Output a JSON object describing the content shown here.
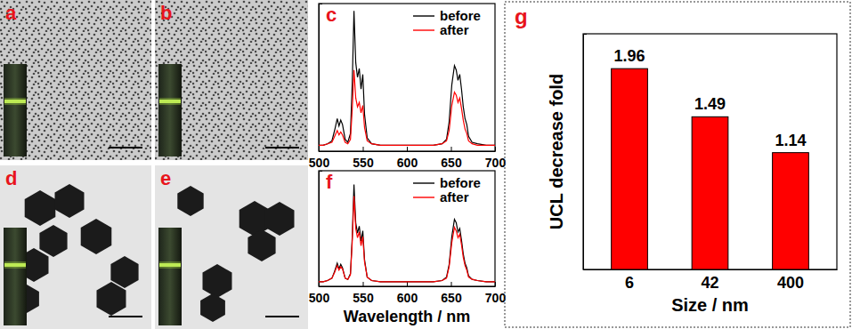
{
  "panels": [
    {
      "label": "a"
    },
    {
      "label": "b"
    },
    {
      "label": "d"
    },
    {
      "label": "e"
    }
  ],
  "chart_data": [
    {
      "type": "line",
      "title": "c",
      "x": [
        500,
        505,
        510,
        515,
        518,
        521,
        523,
        525,
        527,
        530,
        533,
        536,
        538,
        540,
        542,
        544,
        546,
        548,
        550,
        552,
        555,
        560,
        570,
        580,
        590,
        600,
        610,
        620,
        630,
        640,
        645,
        648,
        651,
        654,
        656,
        658,
        660,
        662,
        664,
        666,
        668,
        670,
        674,
        680,
        690,
        700
      ],
      "series": [
        {
          "name": "before",
          "color": "#000000",
          "values": [
            0.04,
            0.04,
            0.05,
            0.07,
            0.14,
            0.22,
            0.17,
            0.21,
            0.18,
            0.08,
            0.06,
            0.12,
            0.45,
            0.95,
            0.6,
            0.5,
            0.56,
            0.42,
            0.52,
            0.25,
            0.09,
            0.05,
            0.04,
            0.04,
            0.04,
            0.04,
            0.04,
            0.04,
            0.04,
            0.05,
            0.08,
            0.2,
            0.45,
            0.58,
            0.55,
            0.48,
            0.52,
            0.42,
            0.3,
            0.22,
            0.18,
            0.1,
            0.06,
            0.05,
            0.04,
            0.04
          ]
        },
        {
          "name": "after",
          "color": "#ff0000",
          "values": [
            0.04,
            0.04,
            0.05,
            0.06,
            0.1,
            0.14,
            0.11,
            0.13,
            0.11,
            0.06,
            0.05,
            0.08,
            0.28,
            0.55,
            0.36,
            0.3,
            0.33,
            0.26,
            0.31,
            0.16,
            0.07,
            0.05,
            0.04,
            0.04,
            0.04,
            0.04,
            0.04,
            0.04,
            0.04,
            0.05,
            0.07,
            0.14,
            0.31,
            0.4,
            0.38,
            0.33,
            0.36,
            0.29,
            0.21,
            0.15,
            0.12,
            0.07,
            0.05,
            0.04,
            0.04,
            0.04
          ]
        }
      ],
      "xlim": [
        500,
        700
      ],
      "xticks": [
        500,
        550,
        600,
        650,
        700
      ],
      "ylim": [
        0,
        1
      ],
      "yticks": [],
      "legend": "upper right",
      "tick_labels": "x"
    },
    {
      "type": "line",
      "title": "f",
      "x_label": "Wavelength / nm",
      "x": [
        500,
        505,
        510,
        515,
        518,
        521,
        523,
        525,
        527,
        530,
        533,
        536,
        538,
        540,
        542,
        544,
        546,
        548,
        550,
        552,
        555,
        560,
        570,
        580,
        590,
        600,
        610,
        620,
        630,
        640,
        645,
        648,
        651,
        654,
        656,
        658,
        660,
        662,
        664,
        666,
        668,
        670,
        674,
        680,
        690,
        700
      ],
      "series": [
        {
          "name": "before",
          "color": "#000000",
          "values": [
            0.04,
            0.04,
            0.05,
            0.07,
            0.13,
            0.2,
            0.15,
            0.19,
            0.16,
            0.07,
            0.06,
            0.11,
            0.42,
            0.88,
            0.55,
            0.46,
            0.52,
            0.39,
            0.48,
            0.23,
            0.08,
            0.05,
            0.04,
            0.04,
            0.04,
            0.04,
            0.04,
            0.04,
            0.04,
            0.05,
            0.08,
            0.19,
            0.43,
            0.58,
            0.55,
            0.47,
            0.5,
            0.4,
            0.28,
            0.2,
            0.16,
            0.09,
            0.06,
            0.05,
            0.04,
            0.04
          ]
        },
        {
          "name": "after",
          "color": "#ff0000",
          "values": [
            0.04,
            0.04,
            0.05,
            0.07,
            0.12,
            0.18,
            0.14,
            0.17,
            0.15,
            0.07,
            0.06,
            0.1,
            0.38,
            0.78,
            0.5,
            0.42,
            0.47,
            0.35,
            0.43,
            0.21,
            0.08,
            0.05,
            0.04,
            0.04,
            0.04,
            0.04,
            0.04,
            0.04,
            0.04,
            0.05,
            0.07,
            0.17,
            0.38,
            0.51,
            0.48,
            0.42,
            0.45,
            0.36,
            0.25,
            0.18,
            0.14,
            0.08,
            0.06,
            0.05,
            0.04,
            0.04
          ]
        }
      ],
      "xlim": [
        500,
        700
      ],
      "xticks": [
        500,
        550,
        600,
        650,
        700
      ],
      "ylim": [
        0,
        1
      ],
      "yticks": [],
      "legend": "upper right",
      "tick_labels": "x"
    },
    {
      "type": "bar",
      "title": "g",
      "x_label": "Size / nm",
      "y_label": "UCL decrease fold",
      "categories": [
        "6",
        "42",
        "400"
      ],
      "values": [
        1.96,
        1.49,
        1.14
      ],
      "color": "#ff0000",
      "ylim": [
        0,
        2.3
      ],
      "yticks": [],
      "data_labels": true,
      "tick_labels": "x"
    }
  ]
}
